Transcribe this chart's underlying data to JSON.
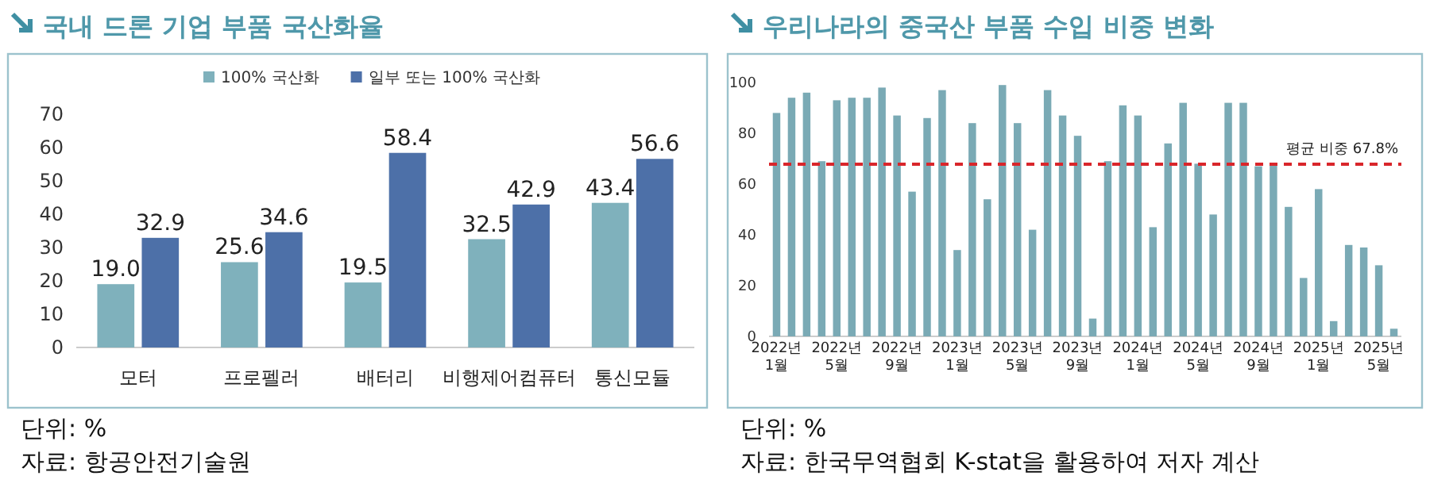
{
  "chart_data": [
    {
      "type": "bar",
      "title": "국내 드론 기업 부품 국산화율",
      "categories": [
        "모터",
        "프로펠러",
        "배터리",
        "비행제어컴퓨터",
        "통신모듈"
      ],
      "series": [
        {
          "name": "100% 국산화",
          "color": "#7fb1bc",
          "values": [
            19.0,
            25.6,
            19.5,
            32.5,
            43.4
          ],
          "value_labels": [
            "19.0",
            "25.6",
            "19.5",
            "32.5",
            "43.4"
          ]
        },
        {
          "name": "일부 또는 100% 국산화",
          "color": "#4d70a8",
          "values": [
            32.9,
            34.6,
            58.4,
            42.9,
            56.6
          ],
          "value_labels": [
            "32.9",
            "34.6",
            "58.4",
            "42.9",
            "56.6"
          ]
        }
      ],
      "ylim": [
        0,
        70
      ],
      "yticks": [
        0,
        10,
        20,
        30,
        40,
        50,
        60,
        70
      ],
      "legend": "top",
      "grid": false,
      "annotations": [
        "단위: %",
        "자료: 항공안전기술원"
      ]
    },
    {
      "type": "bar",
      "title": "우리나라의 중국산 부품 수입 비중 변화",
      "categories": [
        "2022년 1월",
        null,
        null,
        null,
        "2022년 5월",
        null,
        null,
        null,
        "2022년 9월",
        null,
        null,
        null,
        "2023년 1월",
        null,
        null,
        null,
        "2023년 5월",
        null,
        null,
        null,
        "2023년 9월",
        null,
        null,
        null,
        "2024년 1월",
        null,
        null,
        null,
        "2024년 5월",
        null,
        null,
        null,
        "2024년 9월",
        null,
        null,
        null,
        "2025년 1월",
        null,
        null,
        null,
        "2025년 5월",
        null
      ],
      "series": [
        {
          "color": "#7aaab5",
          "values": [
            88,
            94,
            96,
            69,
            93,
            94,
            94,
            98,
            87,
            57,
            86,
            97,
            34,
            84,
            54,
            99,
            84,
            42,
            97,
            87,
            79,
            7,
            69,
            91,
            87,
            43,
            76,
            92,
            68,
            48,
            92,
            92,
            67,
            68,
            51,
            23,
            58,
            6,
            36,
            35,
            28,
            3
          ]
        }
      ],
      "ylim": [
        0,
        100
      ],
      "yticks": [
        0,
        20,
        40,
        60,
        80,
        100
      ],
      "grid": false,
      "ref_lines": [
        {
          "axis": "y",
          "value": 67.8,
          "label": "평균 비중 67.8%",
          "color": "#d9262b",
          "line_style": "dashed"
        }
      ],
      "annotations": [
        "단위: %",
        "자료: 한국무역협회 K-stat을 활용하여 저자 계산"
      ]
    }
  ]
}
